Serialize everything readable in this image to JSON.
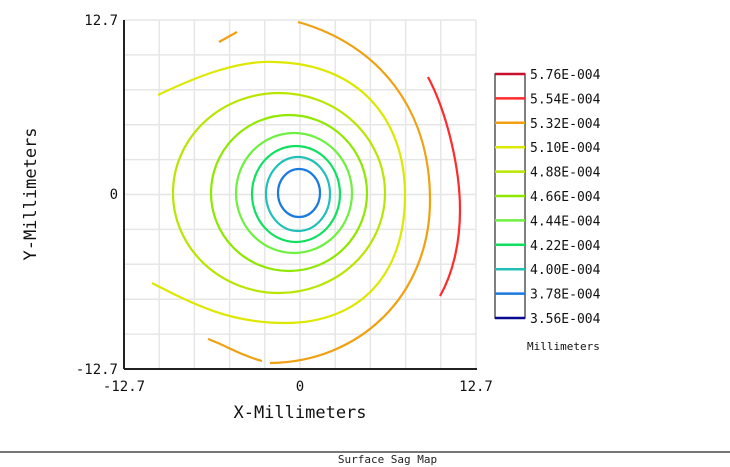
{
  "chart_data": {
    "type": "contour",
    "title": "Surface Sag Map",
    "xlabel": "X-Millimeters",
    "ylabel": "Y-Millimeters",
    "xlim": [
      -12.7,
      12.7
    ],
    "ylim": [
      -12.7,
      12.7
    ],
    "x_ticks": [
      "-12.7",
      "0",
      "12.7"
    ],
    "y_ticks": [
      "12.7",
      "0",
      "-12.7"
    ],
    "grid": true,
    "legend_position": "right",
    "legend_unit": "Millimeters",
    "levels": [
      {
        "label": "5.76E-004",
        "value": 0.000576,
        "color": "#c8102e"
      },
      {
        "label": "5.54E-004",
        "value": 0.000554,
        "color": "#ff2a2a"
      },
      {
        "label": "5.32E-004",
        "value": 0.000532,
        "color": "#f0a010"
      },
      {
        "label": "5.10E-004",
        "value": 0.00051,
        "color": "#dde800"
      },
      {
        "label": "4.88E-004",
        "value": 0.000488,
        "color": "#b8e600"
      },
      {
        "label": "4.66E-004",
        "value": 0.000466,
        "color": "#8ee800"
      },
      {
        "label": "4.44E-004",
        "value": 0.000444,
        "color": "#6ef040"
      },
      {
        "label": "4.22E-004",
        "value": 0.000422,
        "color": "#10e060"
      },
      {
        "label": "4.00E-004",
        "value": 0.0004,
        "color": "#20c0b8"
      },
      {
        "label": "3.78E-004",
        "value": 0.000378,
        "color": "#1a7ae0"
      },
      {
        "label": "3.56E-004",
        "value": 0.000356,
        "color": "#0a0a90"
      }
    ]
  }
}
